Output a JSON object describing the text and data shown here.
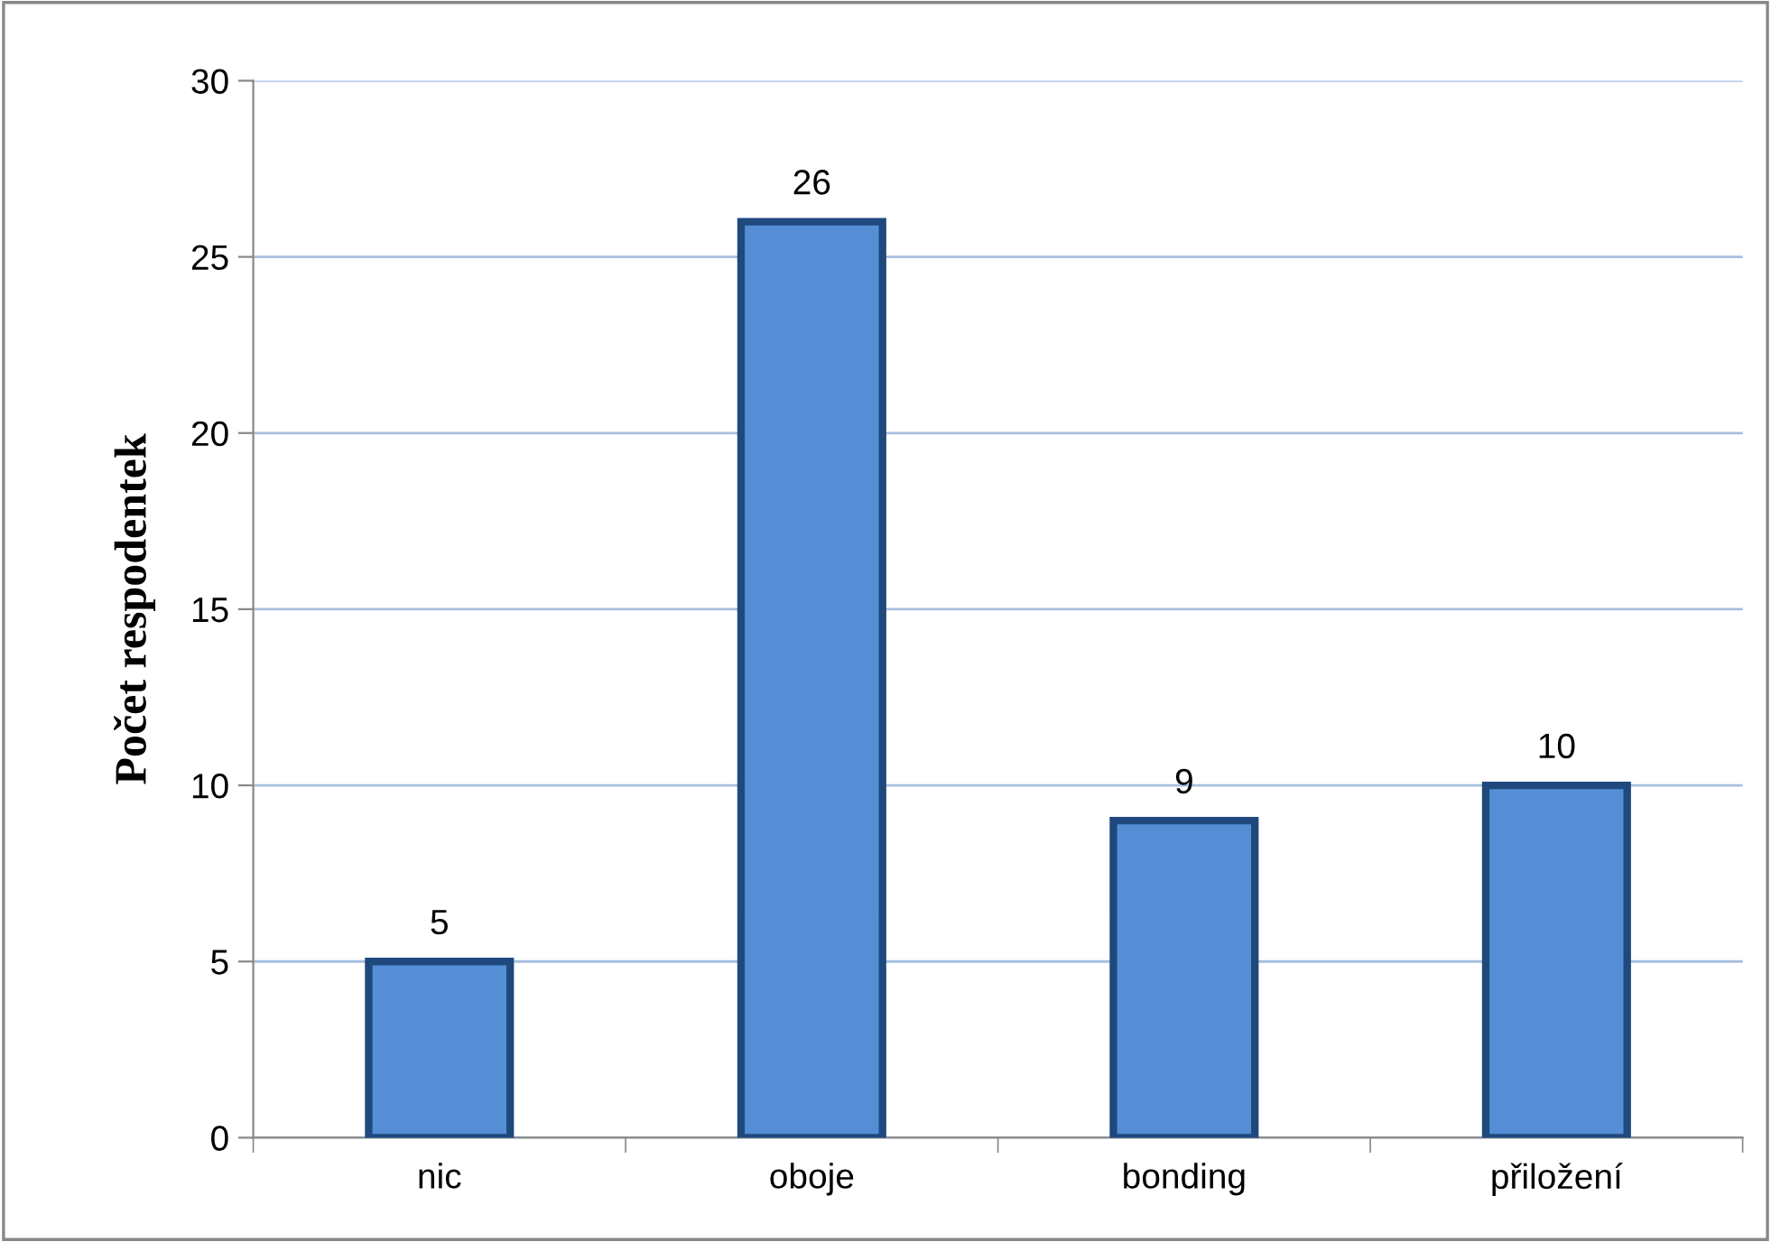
{
  "chart_data": {
    "type": "bar",
    "ylabel": "Počet respodentek",
    "categories": [
      "nic",
      "oboje",
      "bonding",
      "přiložení"
    ],
    "values": [
      5,
      26,
      9,
      10
    ],
    "color": "#558ed5",
    "ylim": [
      0,
      30
    ],
    "yticks": [
      0,
      5,
      10,
      15,
      20,
      25,
      30
    ],
    "grid": "y",
    "data_labels": true
  }
}
